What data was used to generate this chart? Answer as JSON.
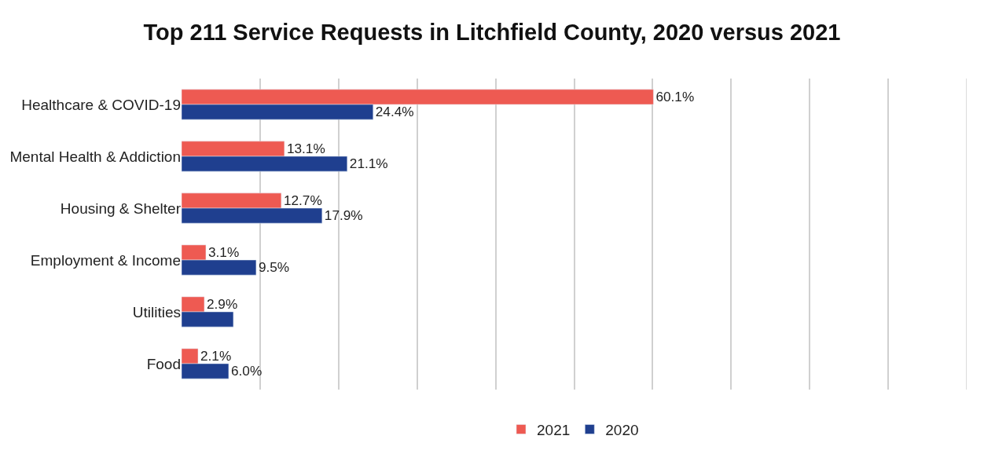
{
  "chart_data": {
    "type": "bar",
    "orientation": "horizontal",
    "title": "Top 211 Service Requests in Litchfield County, 2020 versus 2021",
    "categories": [
      "Healthcare & COVID-19",
      "Mental Health & Addiction",
      "Housing & Shelter",
      "Employment & Income",
      "Utilities",
      "Food"
    ],
    "series": [
      {
        "name": "2021",
        "color": "#ee5a52",
        "values": [
          60.1,
          13.1,
          12.7,
          3.1,
          2.9,
          2.1
        ],
        "value_labels": [
          "60.1%",
          "13.1%",
          "12.7%",
          "3.1%",
          "2.9%",
          "2.1%"
        ]
      },
      {
        "name": "2020",
        "color": "#1f3f8f",
        "values": [
          24.4,
          21.1,
          17.9,
          9.5,
          6.6,
          6.0
        ],
        "value_labels": [
          "24.4%",
          "21.1%",
          "17.9%",
          "9.5%",
          null,
          "6.0%"
        ]
      }
    ],
    "xlim": [
      0,
      100
    ],
    "tick_labels": "y",
    "grid": "x",
    "legend": "bottom"
  }
}
